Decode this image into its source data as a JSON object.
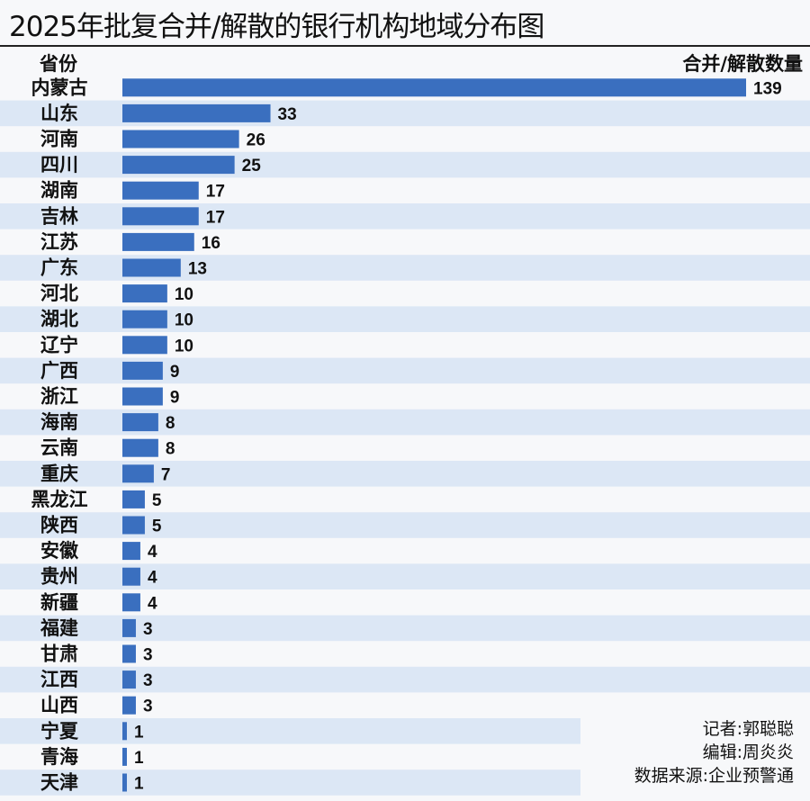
{
  "title": "2025年批复合并/解散的银行机构地域分布图",
  "header_left": "省份",
  "header_right": "合并/解散数量",
  "credits": {
    "reporter": "记者:郭聪聪",
    "editor": "编辑:周炎炎",
    "source": "数据来源:企业预警通"
  },
  "colors": {
    "bar": "#3a6fbf",
    "band": "#dce7f5"
  },
  "chart_data": {
    "type": "bar",
    "orientation": "horizontal",
    "title": "2025年批复合并/解散的银行机构地域分布图",
    "xlabel": "合并/解散数量",
    "ylabel": "省份",
    "categories": [
      "内蒙古",
      "山东",
      "河南",
      "四川",
      "湖南",
      "吉林",
      "江苏",
      "广东",
      "河北",
      "湖北",
      "辽宁",
      "广西",
      "浙江",
      "海南",
      "云南",
      "重庆",
      "黑龙江",
      "陕西",
      "安徽",
      "贵州",
      "新疆",
      "福建",
      "甘肃",
      "江西",
      "山西",
      "宁夏",
      "青海",
      "天津"
    ],
    "values": [
      139,
      33,
      26,
      25,
      17,
      17,
      16,
      13,
      10,
      10,
      10,
      9,
      9,
      8,
      8,
      7,
      5,
      5,
      4,
      4,
      4,
      3,
      3,
      3,
      3,
      1,
      1,
      1
    ],
    "xlim": [
      0,
      139
    ]
  }
}
